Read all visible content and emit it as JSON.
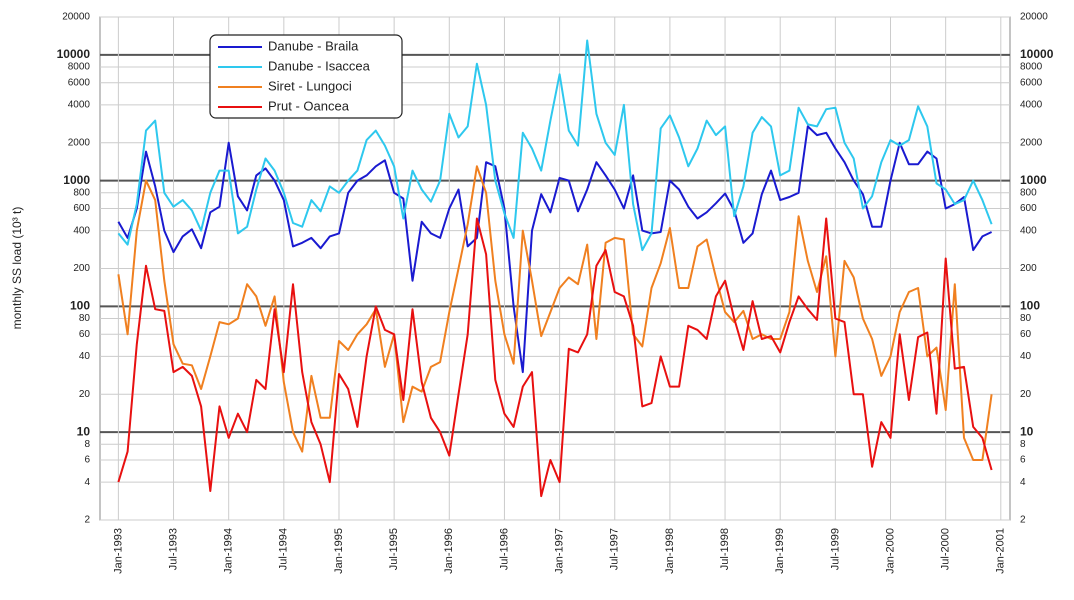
{
  "chart_data": {
    "type": "line",
    "y_label": "monthly SS load (10³ t)",
    "log_scale": true,
    "grid": true,
    "legend": "upper left",
    "x": [
      "1993-01",
      "1993-02",
      "1993-03",
      "1993-04",
      "1993-05",
      "1993-06",
      "1993-07",
      "1993-08",
      "1993-09",
      "1993-10",
      "1993-11",
      "1993-12",
      "1994-01",
      "1994-02",
      "1994-03",
      "1994-04",
      "1994-05",
      "1994-06",
      "1994-07",
      "1994-08",
      "1994-09",
      "1994-10",
      "1994-11",
      "1994-12",
      "1995-01",
      "1995-02",
      "1995-03",
      "1995-04",
      "1995-05",
      "1995-06",
      "1995-07",
      "1995-08",
      "1995-09",
      "1995-10",
      "1995-11",
      "1995-12",
      "1996-01",
      "1996-02",
      "1996-03",
      "1996-04",
      "1996-05",
      "1996-06",
      "1996-07",
      "1996-08",
      "1996-09",
      "1996-10",
      "1996-11",
      "1996-12",
      "1997-01",
      "1997-02",
      "1997-03",
      "1997-04",
      "1997-05",
      "1997-06",
      "1997-07",
      "1997-08",
      "1997-09",
      "1997-10",
      "1997-11",
      "1997-12",
      "1998-01",
      "1998-02",
      "1998-03",
      "1998-04",
      "1998-05",
      "1998-06",
      "1998-07",
      "1998-08",
      "1998-09",
      "1998-10",
      "1998-11",
      "1998-12",
      "1999-01",
      "1999-02",
      "1999-03",
      "1999-04",
      "1999-05",
      "1999-06",
      "1999-07",
      "1999-08",
      "1999-09",
      "1999-10",
      "1999-11",
      "1999-12",
      "2000-01",
      "2000-02",
      "2000-03",
      "2000-04",
      "2000-05",
      "2000-06",
      "2000-07",
      "2000-08",
      "2000-09",
      "2000-10",
      "2000-11",
      "2000-12"
    ],
    "series": [
      {
        "name": "Danube - Braila",
        "color": "#1a1ad0",
        "values": [
          470,
          350,
          600,
          1700,
          900,
          400,
          270,
          360,
          410,
          290,
          560,
          620,
          2000,
          750,
          580,
          1100,
          1250,
          1000,
          700,
          300,
          320,
          350,
          290,
          360,
          380,
          800,
          1000,
          1100,
          1300,
          1450,
          800,
          720,
          160,
          470,
          380,
          350,
          600,
          850,
          300,
          350,
          1400,
          1300,
          600,
          100,
          30,
          400,
          780,
          560,
          1050,
          1000,
          570,
          850,
          1400,
          1100,
          850,
          600,
          1100,
          400,
          380,
          390,
          1000,
          850,
          620,
          500,
          560,
          660,
          790,
          580,
          320,
          380,
          780,
          1200,
          700,
          740,
          800,
          2700,
          2300,
          2400,
          1800,
          1400,
          1000,
          780,
          430,
          430,
          1000,
          2000,
          1350,
          1350,
          1700,
          1500,
          600,
          650,
          740,
          280,
          360,
          390
        ]
      },
      {
        "name": "Danube - Isaccea",
        "color": "#2ec8ee",
        "values": [
          380,
          310,
          650,
          2500,
          3000,
          800,
          620,
          700,
          580,
          400,
          800,
          1200,
          1200,
          380,
          430,
          850,
          1500,
          1200,
          800,
          460,
          430,
          700,
          570,
          900,
          800,
          1000,
          1200,
          2100,
          2500,
          1900,
          1300,
          500,
          1200,
          850,
          680,
          1000,
          3400,
          2200,
          2700,
          8500,
          4000,
          1000,
          550,
          350,
          2400,
          1800,
          1200,
          3000,
          7000,
          2500,
          1900,
          13000,
          3400,
          2000,
          1600,
          4000,
          650,
          280,
          380,
          2600,
          3300,
          2200,
          1300,
          1800,
          3000,
          2300,
          2700,
          520,
          900,
          2400,
          3200,
          2700,
          1100,
          1200,
          3800,
          2800,
          2700,
          3700,
          3800,
          2000,
          1500,
          600,
          750,
          1400,
          2100,
          1900,
          2100,
          3900,
          2700,
          950,
          850,
          650,
          700,
          1000,
          700,
          450
        ]
      },
      {
        "name": "Siret - Lungoci",
        "color": "#f08020",
        "values": [
          180,
          60,
          400,
          1000,
          700,
          160,
          50,
          35,
          34,
          22,
          40,
          75,
          72,
          80,
          150,
          120,
          70,
          120,
          25,
          10,
          7,
          28,
          13,
          13,
          53,
          45,
          60,
          72,
          95,
          33,
          60,
          12,
          23,
          21,
          33,
          36,
          90,
          200,
          450,
          1300,
          800,
          160,
          60,
          35,
          400,
          160,
          58,
          90,
          140,
          170,
          150,
          310,
          55,
          320,
          350,
          340,
          60,
          48,
          140,
          220,
          420,
          140,
          140,
          300,
          340,
          170,
          90,
          75,
          92,
          55,
          60,
          55,
          55,
          90,
          520,
          230,
          130,
          250,
          40,
          230,
          170,
          80,
          55,
          28,
          40,
          90,
          130,
          140,
          40,
          47,
          15,
          150,
          9,
          6,
          6,
          20
        ]
      },
      {
        "name": "Prut - Oancea",
        "color": "#e81010",
        "values": [
          4,
          7,
          50,
          210,
          95,
          92,
          30,
          33,
          28,
          16,
          3.4,
          16,
          9,
          14,
          10,
          26,
          22,
          95,
          30,
          150,
          30,
          12,
          8,
          4,
          29,
          22,
          11,
          40,
          100,
          65,
          60,
          18,
          95,
          25,
          13,
          10,
          6.5,
          20,
          60,
          500,
          260,
          26,
          14,
          11,
          23,
          30,
          3.1,
          6,
          4,
          46,
          43,
          60,
          210,
          280,
          130,
          120,
          70,
          16,
          17,
          40,
          23,
          23,
          70,
          65,
          55,
          120,
          160,
          80,
          45,
          110,
          55,
          58,
          43,
          75,
          120,
          95,
          78,
          500,
          80,
          75,
          20,
          20,
          5.3,
          12,
          9,
          60,
          18,
          57,
          62,
          14,
          240,
          32,
          33,
          11,
          9,
          5
        ]
      }
    ],
    "xlim": [
      "1992-11",
      "2001-02"
    ],
    "xticks": [
      {
        "value": "1993-01",
        "label": "Jan-1993"
      },
      {
        "value": "1993-07",
        "label": "Jul-1993"
      },
      {
        "value": "1994-01",
        "label": "Jan-1994"
      },
      {
        "value": "1994-07",
        "label": "Jul-1994"
      },
      {
        "value": "1995-01",
        "label": "Jan-1995"
      },
      {
        "value": "1995-07",
        "label": "Jul-1995"
      },
      {
        "value": "1996-01",
        "label": "Jan-1996"
      },
      {
        "value": "1996-07",
        "label": "Jul-1996"
      },
      {
        "value": "1997-01",
        "label": "Jan-1997"
      },
      {
        "value": "1997-07",
        "label": "Jul-1997"
      },
      {
        "value": "1998-01",
        "label": "Jan-1998"
      },
      {
        "value": "1998-07",
        "label": "Jul-1998"
      },
      {
        "value": "1999-01",
        "label": "Jan-1999"
      },
      {
        "value": "1999-07",
        "label": "Jul-1999"
      },
      {
        "value": "2000-01",
        "label": "Jan-2000"
      },
      {
        "value": "2000-07",
        "label": "Jul-2000"
      },
      {
        "value": "2001-01",
        "label": "Jan-2001"
      }
    ],
    "ylim": [
      2,
      20000
    ],
    "yticks": [
      2,
      4,
      6,
      8,
      10,
      20,
      40,
      60,
      80,
      100,
      200,
      400,
      600,
      800,
      1000,
      2000,
      4000,
      6000,
      8000,
      10000,
      20000
    ]
  }
}
